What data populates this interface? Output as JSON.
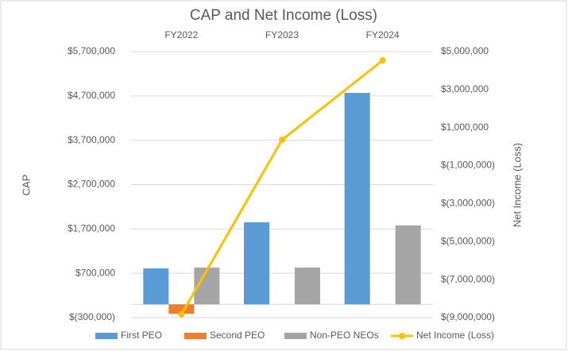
{
  "chart_data": {
    "type": "bar-line",
    "title": "CAP and Net Income (Loss)",
    "y_label": "CAP",
    "y2_label": "Net Income (Loss)",
    "categories": [
      "FY2022",
      "FY2023",
      "FY2024"
    ],
    "series": [
      {
        "name": "First PEO",
        "color": "#5b9bd5",
        "type": "bar",
        "values": [
          810000,
          1850000,
          4770000
        ]
      },
      {
        "name": "Second PEO",
        "color": "#ed7d31",
        "type": "bar",
        "values": [
          -210000,
          null,
          null
        ]
      },
      {
        "name": "Non-PEO NEOs",
        "color": "#a5a5a5",
        "type": "bar",
        "values": [
          830000,
          830000,
          1780000
        ]
      },
      {
        "name": "Net Income (Loss)",
        "color": "#ffc000",
        "type": "line",
        "axis": "y2",
        "values": [
          -8830000,
          360000,
          4540000
        ]
      }
    ],
    "ylim": [
      -300000,
      5700000
    ],
    "yticks": [
      {
        "value": -300000,
        "label": "$(300,000)"
      },
      {
        "value": 700000,
        "label": "$700,000"
      },
      {
        "value": 1700000,
        "label": "$1,700,000"
      },
      {
        "value": 2700000,
        "label": "$2,700,000"
      },
      {
        "value": 3700000,
        "label": "$3,700,000"
      },
      {
        "value": 4700000,
        "label": "$4,700,000"
      },
      {
        "value": 5700000,
        "label": "$5,700,000"
      }
    ],
    "y2lim": [
      -9000000,
      5000000
    ],
    "y2ticks": [
      {
        "value": -9000000,
        "label": "$(9,000,000)"
      },
      {
        "value": -7000000,
        "label": "$(7,000,000)"
      },
      {
        "value": -5000000,
        "label": "$(5,000,000)"
      },
      {
        "value": -3000000,
        "label": "$(3,000,000)"
      },
      {
        "value": -1000000,
        "label": "$(1,000,000)"
      },
      {
        "value": 1000000,
        "label": "$1,000,000"
      },
      {
        "value": 3000000,
        "label": "$3,000,000"
      },
      {
        "value": 5000000,
        "label": "$5,000,000"
      }
    ],
    "grid": true
  }
}
